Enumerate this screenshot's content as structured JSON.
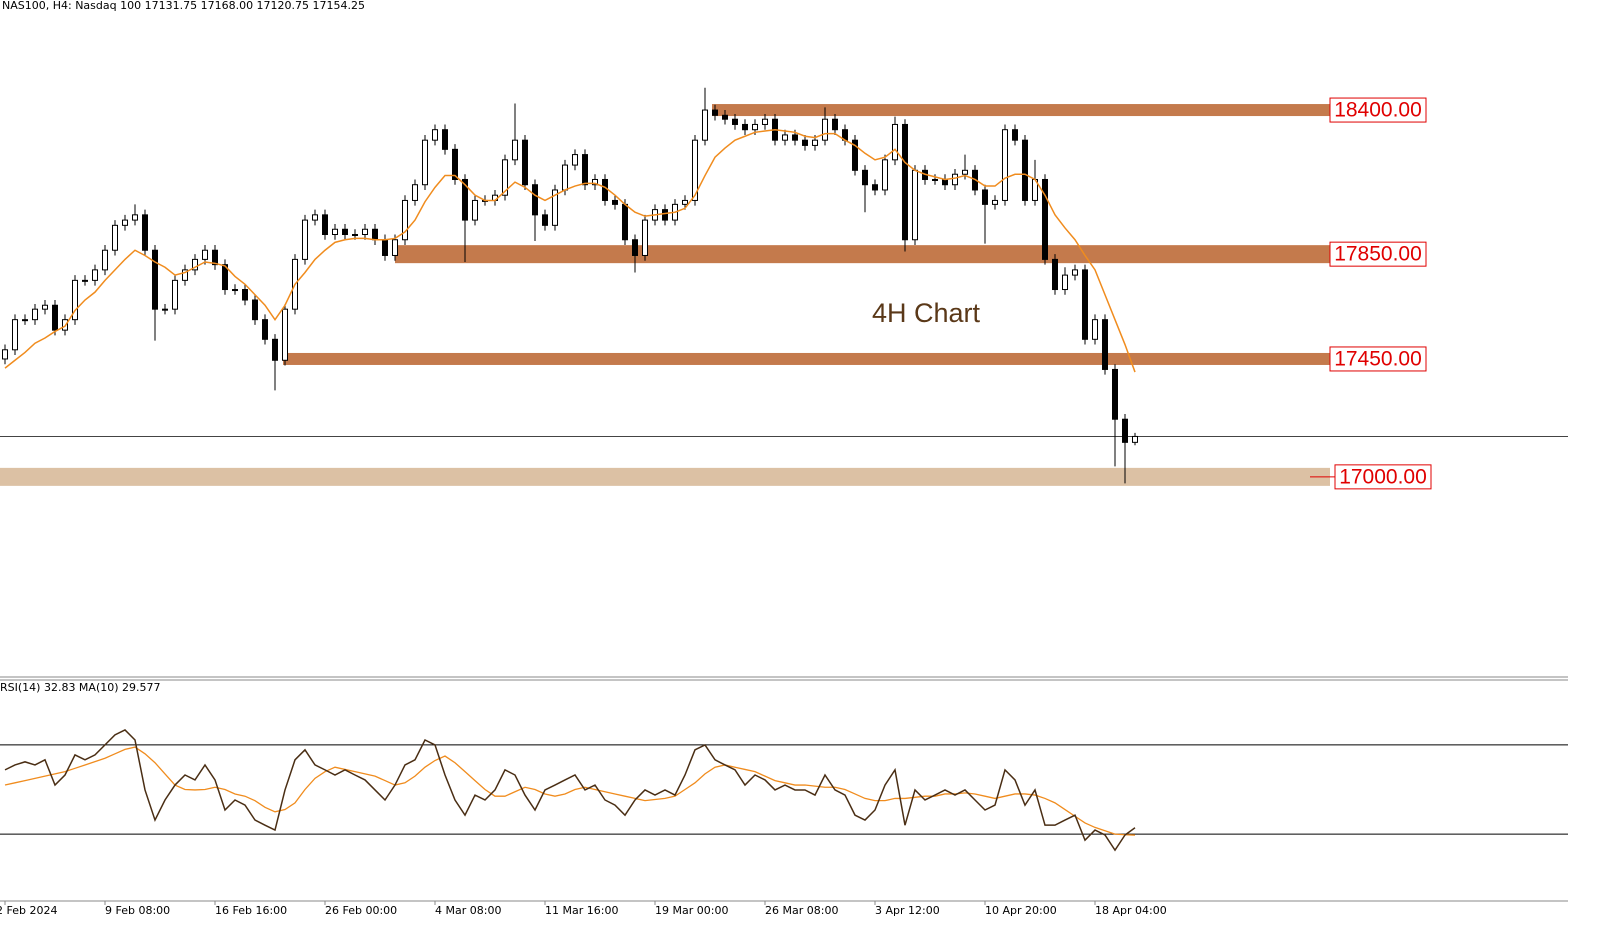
{
  "chart_data": [
    {
      "type": "candlestick",
      "title": "NAS100, H4:  Nasdaq 100  17131.75 17168.00 17120.75 17154.25",
      "annotation": "4H Chart",
      "categories": [
        "2 Feb 2024",
        null,
        null,
        null,
        null,
        null,
        null,
        null,
        null,
        null,
        "9 Feb 08:00",
        null,
        null,
        null,
        null,
        null,
        null,
        null,
        null,
        null,
        null,
        "16 Feb 16:00",
        null,
        null,
        null,
        null,
        null,
        null,
        null,
        null,
        null,
        null,
        "26 Feb 00:00",
        null,
        null,
        null,
        null,
        null,
        null,
        null,
        null,
        null,
        null,
        "4 Mar 08:00",
        null,
        null,
        null,
        null,
        null,
        null,
        null,
        null,
        null,
        null,
        "11 Mar 16:00",
        null,
        null,
        null,
        null,
        null,
        null,
        null,
        null,
        null,
        null,
        "19 Mar 00:00",
        null,
        null,
        null,
        null,
        null,
        null,
        null,
        null,
        null,
        null,
        "26 Mar 08:00",
        null,
        null,
        null,
        null,
        null,
        null,
        null,
        null,
        null,
        null,
        "3 Apr 12:00",
        null,
        null,
        null,
        null,
        null,
        null,
        null,
        null,
        null,
        null,
        "10 Apr 20:00",
        null,
        null,
        null,
        null,
        null,
        null,
        null,
        null,
        null,
        null,
        "18 Apr 04:00",
        null,
        null,
        null,
        null
      ],
      "ohlc": [
        [
          17450,
          17505,
          17430,
          17485
        ],
        [
          17485,
          17620,
          17465,
          17600
        ],
        [
          17600,
          17620,
          17580,
          17600
        ],
        [
          17600,
          17660,
          17580,
          17640
        ],
        [
          17640,
          17675,
          17620,
          17655
        ],
        [
          17655,
          17675,
          17540,
          17560
        ],
        [
          17560,
          17620,
          17540,
          17600
        ],
        [
          17600,
          17770,
          17580,
          17750
        ],
        [
          17750,
          17770,
          17730,
          17750
        ],
        [
          17750,
          17810,
          17730,
          17790
        ],
        [
          17790,
          17885,
          17770,
          17865
        ],
        [
          17865,
          17980,
          17845,
          17960
        ],
        [
          17960,
          18000,
          17940,
          17980
        ],
        [
          17980,
          18040,
          17960,
          18000
        ],
        [
          18000,
          18020,
          17845,
          17865
        ],
        [
          17865,
          17885,
          17520,
          17640
        ],
        [
          17640,
          17660,
          17620,
          17640
        ],
        [
          17640,
          17770,
          17620,
          17750
        ],
        [
          17750,
          17810,
          17730,
          17790
        ],
        [
          17790,
          17850,
          17770,
          17830
        ],
        [
          17830,
          17885,
          17810,
          17865
        ],
        [
          17865,
          17885,
          17790,
          17810
        ],
        [
          17810,
          17830,
          17695,
          17715
        ],
        [
          17715,
          17735,
          17695,
          17715
        ],
        [
          17715,
          17735,
          17655,
          17675
        ],
        [
          17675,
          17695,
          17580,
          17600
        ],
        [
          17600,
          17620,
          17505,
          17525
        ],
        [
          17525,
          17545,
          17330,
          17445
        ],
        [
          17445,
          17660,
          17425,
          17640
        ],
        [
          17640,
          17850,
          17620,
          17830
        ],
        [
          17830,
          18000,
          17810,
          17980
        ],
        [
          17980,
          18020,
          17960,
          18000
        ],
        [
          18000,
          18020,
          17905,
          17925
        ],
        [
          17925,
          17965,
          17905,
          17945
        ],
        [
          17945,
          17965,
          17905,
          17925
        ],
        [
          17925,
          17945,
          17905,
          17925
        ],
        [
          17925,
          17965,
          17905,
          17945
        ],
        [
          17945,
          17965,
          17885,
          17905
        ],
        [
          17905,
          17925,
          17825,
          17845
        ],
        [
          17845,
          17925,
          17825,
          17905
        ],
        [
          17905,
          18075,
          17885,
          18055
        ],
        [
          18055,
          18135,
          18035,
          18115
        ],
        [
          18115,
          18305,
          18095,
          18285
        ],
        [
          18285,
          18345,
          18265,
          18325
        ],
        [
          18325,
          18345,
          18230,
          18250
        ],
        [
          18250,
          18270,
          18115,
          18135
        ],
        [
          18135,
          18155,
          17820,
          17980
        ],
        [
          17980,
          18075,
          17960,
          18055
        ],
        [
          18055,
          18075,
          18035,
          18055
        ],
        [
          18055,
          18095,
          18035,
          18075
        ],
        [
          18075,
          18230,
          18055,
          18210
        ],
        [
          18210,
          18425,
          18190,
          18285
        ],
        [
          18285,
          18305,
          18095,
          18115
        ],
        [
          18115,
          18135,
          17900,
          18000
        ],
        [
          18000,
          18020,
          17940,
          17960
        ],
        [
          17960,
          18115,
          17940,
          18095
        ],
        [
          18095,
          18210,
          18075,
          18190
        ],
        [
          18190,
          18250,
          18170,
          18230
        ],
        [
          18230,
          18250,
          18095,
          18115
        ],
        [
          18115,
          18155,
          18095,
          18135
        ],
        [
          18135,
          18155,
          18035,
          18055
        ],
        [
          18055,
          18075,
          18020,
          18040
        ],
        [
          18040,
          18060,
          17885,
          17905
        ],
        [
          17905,
          17925,
          17780,
          17845
        ],
        [
          17845,
          18000,
          17825,
          17980
        ],
        [
          17980,
          18040,
          17960,
          18020
        ],
        [
          18020,
          18040,
          17960,
          17980
        ],
        [
          17980,
          18060,
          17960,
          18040
        ],
        [
          18040,
          18075,
          18020,
          18055
        ],
        [
          18055,
          18305,
          18035,
          18285
        ],
        [
          18285,
          18485,
          18265,
          18400
        ],
        [
          18400,
          18420,
          18360,
          18380
        ],
        [
          18380,
          18400,
          18345,
          18365
        ],
        [
          18365,
          18385,
          18325,
          18345
        ],
        [
          18345,
          18365,
          18305,
          18325
        ],
        [
          18325,
          18365,
          18305,
          18345
        ],
        [
          18345,
          18385,
          18325,
          18365
        ],
        [
          18365,
          18385,
          18265,
          18285
        ],
        [
          18285,
          18325,
          18265,
          18305
        ],
        [
          18305,
          18325,
          18265,
          18285
        ],
        [
          18285,
          18305,
          18245,
          18265
        ],
        [
          18265,
          18305,
          18245,
          18285
        ],
        [
          18285,
          18410,
          18265,
          18365
        ],
        [
          18365,
          18385,
          18305,
          18325
        ],
        [
          18325,
          18345,
          18265,
          18285
        ],
        [
          18285,
          18305,
          18150,
          18170
        ],
        [
          18170,
          18190,
          18010,
          18115
        ],
        [
          18115,
          18135,
          18075,
          18095
        ],
        [
          18095,
          18230,
          18075,
          18210
        ],
        [
          18210,
          18375,
          18190,
          18345
        ],
        [
          18345,
          18365,
          17860,
          17905
        ],
        [
          17905,
          18190,
          17885,
          18170
        ],
        [
          18170,
          18190,
          18115,
          18135
        ],
        [
          18135,
          18155,
          18115,
          18135
        ],
        [
          18135,
          18155,
          18095,
          18115
        ],
        [
          18115,
          18175,
          18095,
          18155
        ],
        [
          18155,
          18230,
          18135,
          18170
        ],
        [
          18170,
          18190,
          18075,
          18095
        ],
        [
          18095,
          18115,
          17890,
          18040
        ],
        [
          18040,
          18075,
          18020,
          18055
        ],
        [
          18055,
          18345,
          18035,
          18325
        ],
        [
          18325,
          18345,
          18265,
          18285
        ],
        [
          18285,
          18305,
          18035,
          18055
        ],
        [
          18055,
          18210,
          18035,
          18135
        ],
        [
          18135,
          18155,
          17810,
          17830
        ],
        [
          17830,
          17850,
          17695,
          17715
        ],
        [
          17715,
          17800,
          17695,
          17770
        ],
        [
          17770,
          17810,
          17750,
          17790
        ],
        [
          17790,
          17810,
          17505,
          17525
        ],
        [
          17525,
          17620,
          17505,
          17600
        ],
        [
          17600,
          17620,
          17390,
          17410
        ],
        [
          17410,
          17430,
          17040,
          17220
        ],
        [
          17220,
          17240,
          16975,
          17131.75
        ],
        [
          17131.75,
          17168,
          17120.75,
          17154.25
        ]
      ],
      "ma": [
        17415,
        17445,
        17475,
        17510,
        17530,
        17555,
        17575,
        17635,
        17675,
        17705,
        17750,
        17790,
        17830,
        17865,
        17845,
        17820,
        17800,
        17770,
        17780,
        17800,
        17820,
        17815,
        17805,
        17765,
        17735,
        17695,
        17655,
        17600,
        17655,
        17735,
        17780,
        17830,
        17865,
        17895,
        17905,
        17910,
        17910,
        17905,
        17905,
        17910,
        17935,
        17980,
        18050,
        18105,
        18150,
        18150,
        18115,
        18075,
        18055,
        18055,
        18090,
        18125,
        18105,
        18075,
        18055,
        18075,
        18095,
        18110,
        18120,
        18120,
        18105,
        18075,
        18040,
        18010,
        17995,
        18000,
        18005,
        18010,
        18025,
        18075,
        18150,
        18220,
        18255,
        18285,
        18300,
        18315,
        18320,
        18325,
        18320,
        18315,
        18300,
        18295,
        18310,
        18310,
        18285,
        18265,
        18235,
        18210,
        18220,
        18250,
        18200,
        18170,
        18155,
        18145,
        18135,
        18140,
        18150,
        18135,
        18110,
        18110,
        18140,
        18155,
        18155,
        18135,
        18075,
        18000,
        17950,
        17905,
        17845,
        17790,
        17695,
        17600,
        17505,
        17400
      ],
      "ma_color": "#f08c1e",
      "ylim": [
        16240,
        18820
      ],
      "levels": [
        {
          "value": 18400,
          "label": "18400.00",
          "color": "#c47a4c"
        },
        {
          "value": 17850,
          "label": "17850.00",
          "color": "#c47a4c"
        },
        {
          "value": 17450,
          "label": "17450.00",
          "color": "#c47a4c"
        },
        {
          "value": 17000,
          "label": "17000.00",
          "color": "#dcc1a4"
        }
      ]
    },
    {
      "type": "line",
      "title": "RSI(14) 32.83 MA(10) 29.577",
      "values": [
        58.8,
        61.0,
        62.4,
        61.0,
        63.3,
        52.0,
        56.5,
        65.5,
        63.3,
        65.5,
        70.0,
        74.5,
        76.7,
        72.2,
        49.8,
        36.3,
        45.3,
        52.0,
        56.5,
        54.3,
        61.0,
        54.3,
        40.8,
        45.3,
        43.0,
        36.3,
        34.0,
        31.8,
        49.8,
        63.3,
        67.8,
        61.0,
        58.8,
        56.5,
        58.8,
        56.5,
        54.3,
        49.8,
        45.3,
        52.0,
        61.0,
        63.3,
        72.2,
        70.0,
        56.5,
        45.3,
        38.5,
        47.5,
        45.3,
        49.8,
        58.8,
        56.5,
        47.5,
        40.8,
        49.8,
        52.0,
        54.3,
        56.5,
        49.8,
        52.0,
        45.3,
        43.0,
        38.5,
        45.3,
        49.8,
        47.5,
        49.8,
        47.5,
        56.5,
        67.8,
        70.0,
        63.3,
        61.0,
        58.8,
        52.0,
        56.5,
        54.3,
        49.8,
        52.0,
        49.8,
        49.8,
        47.5,
        56.5,
        49.8,
        47.5,
        38.5,
        36.3,
        40.8,
        52.0,
        58.8,
        34.0,
        49.8,
        45.3,
        47.5,
        49.8,
        47.5,
        49.8,
        45.3,
        40.8,
        43.0,
        58.8,
        54.3,
        43.0,
        49.8,
        34.0,
        34.0,
        36.3,
        38.5,
        27.3,
        31.8,
        29.6,
        22.8,
        29.6,
        32.83
      ],
      "color": "#4a2e14",
      "ma": [
        52,
        53,
        54,
        55,
        56,
        57,
        58,
        59.5,
        61,
        62.5,
        64,
        66,
        68,
        69,
        66,
        62,
        57,
        52,
        50,
        49.8,
        50,
        51,
        50,
        48,
        47,
        45,
        42,
        40,
        41,
        44,
        50,
        55,
        58,
        60,
        59,
        58,
        57,
        56,
        54,
        52,
        53,
        56,
        60,
        63,
        65,
        62,
        58,
        54,
        50,
        47,
        47,
        49,
        51,
        50,
        48,
        47,
        48,
        50,
        51,
        50,
        49,
        48,
        47,
        46,
        45,
        45.5,
        46,
        47,
        50,
        53,
        57,
        60,
        61,
        60,
        59,
        58,
        56,
        54,
        53,
        52,
        52,
        51.5,
        51,
        51,
        50,
        48,
        46,
        45,
        45,
        46,
        46,
        46.5,
        47,
        47,
        48,
        48,
        48.5,
        48,
        47,
        46,
        47,
        48,
        48,
        47.5,
        46,
        44,
        41,
        38,
        35,
        33,
        31.5,
        30,
        29.7,
        29.577
      ],
      "ma_color": "#f08c1e",
      "ylim": [
        0,
        100
      ],
      "levels": [
        70,
        30
      ]
    }
  ]
}
